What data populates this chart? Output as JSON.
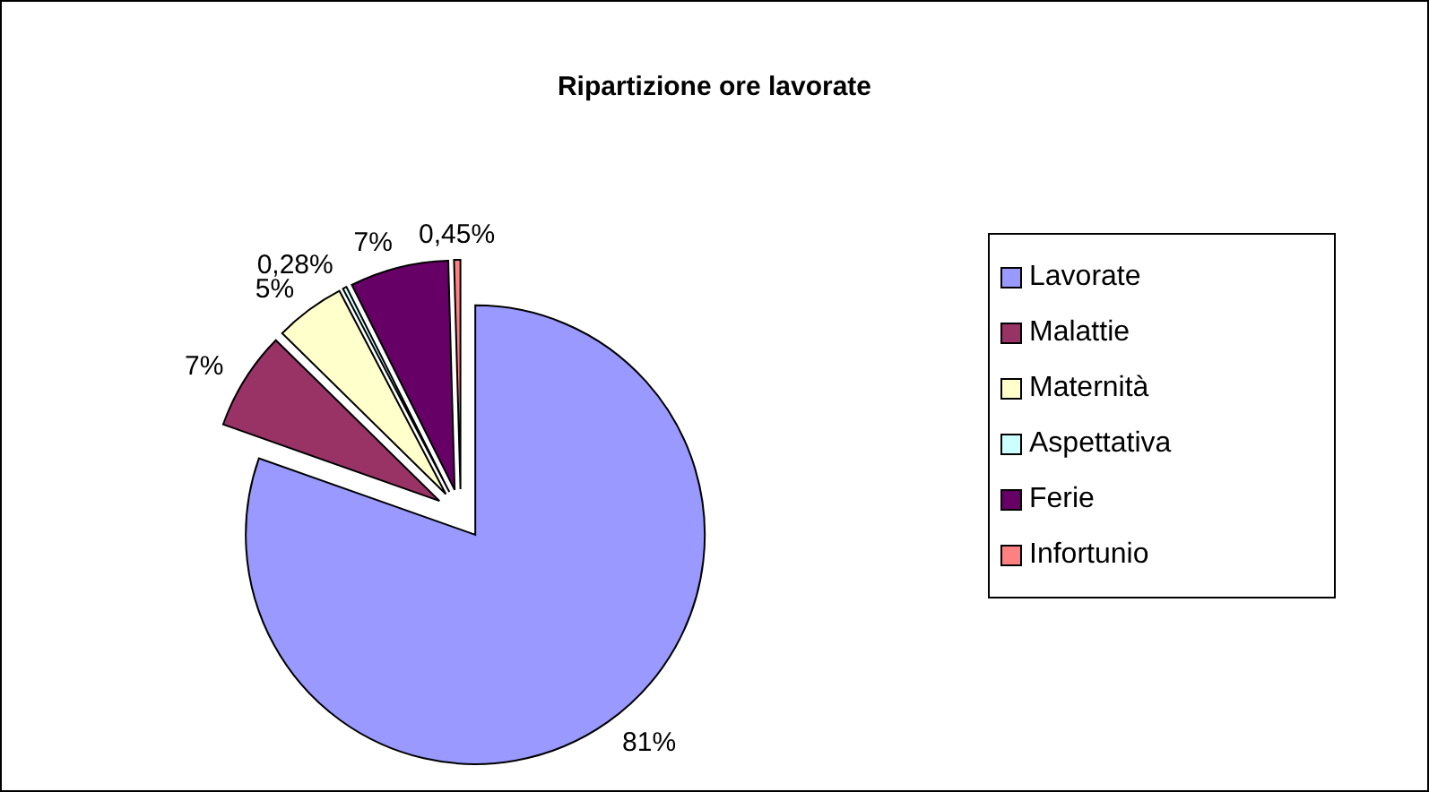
{
  "chart_data": {
    "type": "pie",
    "title": "Ripartizione ore lavorate",
    "categories": [
      "Lavorate",
      "Malattie",
      "Maternità",
      "Aspettativa",
      "Ferie",
      "Infortunio"
    ],
    "values": [
      81,
      7,
      5,
      0.28,
      7,
      0.45
    ],
    "value_labels": [
      "81%",
      "7%",
      "5%",
      "0,28%",
      "7%",
      "0,45%"
    ],
    "colors": [
      "#9999ff",
      "#993366",
      "#ffffcc",
      "#ccffff",
      "#660066",
      "#ff8080"
    ],
    "legend": "right"
  }
}
